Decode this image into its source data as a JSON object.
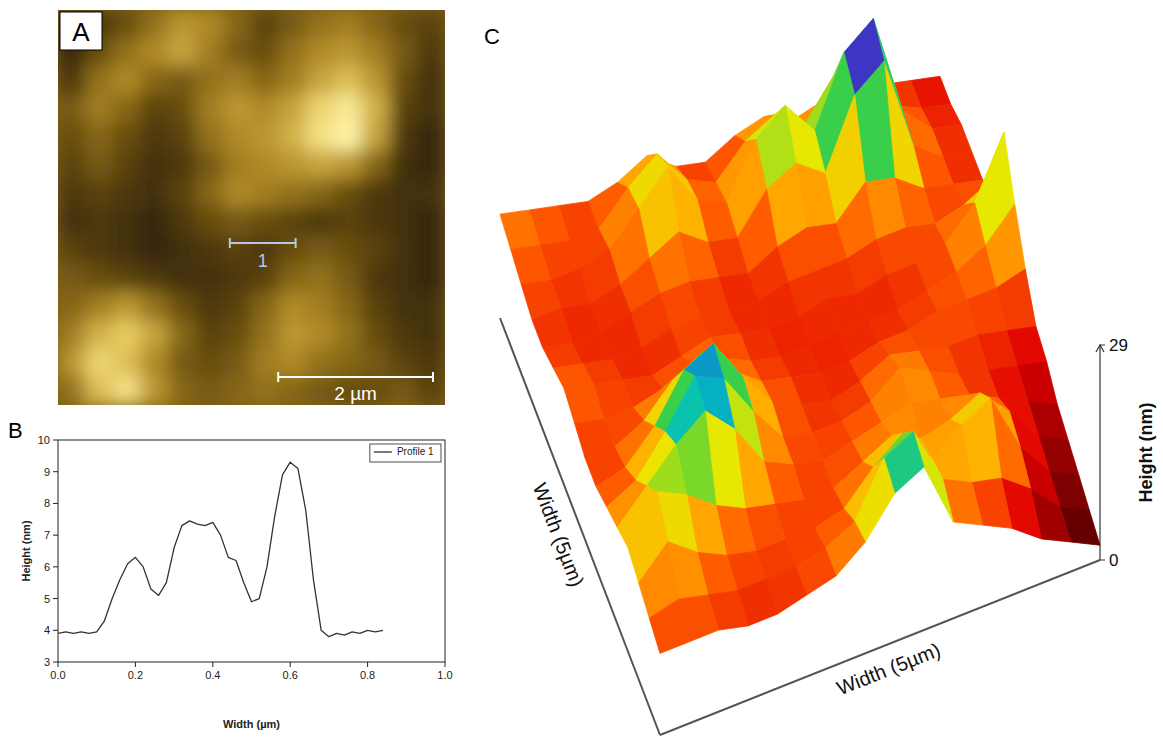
{
  "chart_data": [
    {
      "type": "heatmap",
      "panel": "A",
      "xlim": [
        0,
        5
      ],
      "ylim": [
        0,
        5
      ],
      "zlim": [
        0,
        20
      ],
      "scale_bar": {
        "length": 2,
        "label": "2 µm"
      },
      "profile": {
        "label": "1",
        "x": [
          2.22,
          3.07
        ],
        "y": 2.95
      },
      "z": [
        [
          3,
          4,
          6,
          9,
          12,
          11,
          8,
          5,
          7,
          9,
          10,
          8,
          6,
          5
        ],
        [
          2,
          6,
          9,
          11,
          13,
          10,
          7,
          6,
          9,
          11,
          12,
          10,
          7,
          4
        ],
        [
          4,
          9,
          11,
          8,
          7,
          9,
          10,
          8,
          10,
          13,
          15,
          12,
          6,
          3
        ],
        [
          7,
          10,
          8,
          5,
          6,
          10,
          12,
          11,
          13,
          17,
          19,
          14,
          5,
          3
        ],
        [
          6,
          8,
          6,
          4,
          5,
          9,
          11,
          12,
          14,
          18,
          20,
          13,
          4,
          2
        ],
        [
          5,
          7,
          5,
          3,
          4,
          7,
          10,
          11,
          12,
          13,
          12,
          8,
          3,
          2
        ],
        [
          4,
          5,
          4,
          3,
          5,
          8,
          11,
          10,
          9,
          8,
          6,
          4,
          3,
          3
        ],
        [
          3,
          4,
          3,
          2,
          4,
          6,
          7,
          6,
          5,
          4,
          5,
          4,
          3,
          2
        ],
        [
          5,
          4,
          3,
          2,
          3,
          4,
          5,
          4,
          6,
          7,
          6,
          5,
          3,
          2
        ],
        [
          7,
          6,
          5,
          4,
          3,
          3,
          4,
          5,
          8,
          9,
          7,
          4,
          3,
          2
        ],
        [
          8,
          10,
          12,
          9,
          6,
          4,
          5,
          8,
          11,
          10,
          8,
          5,
          3,
          3
        ],
        [
          10,
          14,
          16,
          13,
          8,
          5,
          6,
          9,
          12,
          11,
          9,
          6,
          4,
          3
        ],
        [
          12,
          17,
          15,
          11,
          7,
          6,
          7,
          10,
          11,
          9,
          8,
          7,
          5,
          4
        ],
        [
          9,
          15,
          18,
          12,
          8,
          7,
          8,
          9,
          8,
          7,
          6,
          6,
          7,
          5
        ]
      ]
    },
    {
      "type": "line",
      "panel": "B",
      "xlabel": "Width (µm)",
      "ylabel": "Height (nm)",
      "legend": "top-right",
      "xlim": [
        0,
        1
      ],
      "ylim": [
        3,
        10
      ],
      "xticks": [
        {
          "value": 0,
          "label": "0.0"
        },
        {
          "value": 0.2,
          "label": "0.2"
        },
        {
          "value": 0.4,
          "label": "0.4"
        },
        {
          "value": 0.6,
          "label": "0.6"
        },
        {
          "value": 0.8,
          "label": "0.8"
        },
        {
          "value": 1,
          "label": "1.0"
        }
      ],
      "yticks": [
        3,
        4,
        5,
        6,
        7,
        8,
        9,
        10
      ],
      "x": [
        0,
        0.02,
        0.04,
        0.06,
        0.08,
        0.1,
        0.12,
        0.14,
        0.16,
        0.18,
        0.2,
        0.22,
        0.24,
        0.26,
        0.28,
        0.3,
        0.32,
        0.34,
        0.36,
        0.38,
        0.4,
        0.42,
        0.44,
        0.46,
        0.48,
        0.5,
        0.52,
        0.54,
        0.56,
        0.58,
        0.6,
        0.62,
        0.64,
        0.66,
        0.68,
        0.7,
        0.72,
        0.74,
        0.76,
        0.78,
        0.8,
        0.82,
        0.84
      ],
      "series": [
        {
          "name": "Profile 1",
          "color": "#333333",
          "values": [
            3.9,
            3.95,
            3.9,
            3.95,
            3.9,
            3.95,
            4.3,
            5.0,
            5.6,
            6.1,
            6.3,
            6.0,
            5.3,
            5.1,
            5.5,
            6.6,
            7.3,
            7.45,
            7.35,
            7.3,
            7.4,
            7.0,
            6.3,
            6.2,
            5.5,
            4.9,
            5.0,
            6.0,
            7.6,
            8.9,
            9.3,
            9.1,
            7.8,
            5.6,
            4.0,
            3.8,
            3.9,
            3.85,
            3.95,
            3.9,
            4.0,
            3.95,
            4.0
          ]
        }
      ]
    },
    {
      "type": "surface",
      "panel": "C",
      "xlabel": "Width (5µm)",
      "ylabel": "Width (5µm)",
      "zlabel": "Height (nm)",
      "xlim": [
        0,
        5
      ],
      "ylim": [
        0,
        5
      ],
      "zlim": [
        0,
        29
      ],
      "zticks": [
        0,
        29
      ],
      "z": [
        [
          14,
          13,
          12,
          11,
          12,
          14,
          11,
          10,
          12,
          13,
          11,
          12,
          13,
          11,
          10,
          9
        ],
        [
          13,
          12,
          11,
          11,
          15,
          18,
          13,
          11,
          15,
          17,
          14,
          19,
          16,
          12,
          10,
          9
        ],
        [
          12,
          11,
          11,
          12,
          16,
          20,
          14,
          12,
          19,
          22,
          17,
          26,
          29,
          15,
          11,
          10
        ],
        [
          11,
          11,
          10,
          11,
          13,
          15,
          12,
          11,
          16,
          18,
          15,
          24,
          27,
          14,
          11,
          10
        ],
        [
          11,
          10,
          10,
          11,
          12,
          12,
          11,
          10,
          12,
          13,
          12,
          16,
          15,
          12,
          11,
          10
        ],
        [
          12,
          11,
          10,
          10,
          11,
          11,
          10,
          10,
          11,
          11,
          11,
          12,
          12,
          11,
          12,
          14
        ],
        [
          13,
          12,
          11,
          10,
          11,
          12,
          11,
          10,
          10,
          11,
          10,
          11,
          11,
          12,
          16,
          24
        ],
        [
          12,
          11,
          11,
          12,
          14,
          13,
          11,
          10,
          10,
          10,
          10,
          10,
          11,
          12,
          14,
          18
        ],
        [
          11,
          11,
          13,
          17,
          19,
          15,
          12,
          11,
          10,
          10,
          11,
          11,
          12,
          12,
          12,
          13
        ],
        [
          11,
          12,
          16,
          22,
          24,
          18,
          13,
          11,
          10,
          11,
          13,
          12,
          11,
          11,
          10,
          9
        ],
        [
          12,
          14,
          19,
          25,
          23,
          17,
          12,
          11,
          11,
          12,
          15,
          13,
          11,
          10,
          9,
          8
        ],
        [
          13,
          17,
          21,
          24,
          20,
          14,
          12,
          11,
          12,
          13,
          14,
          13,
          12,
          10,
          8,
          6
        ],
        [
          14,
          20,
          18,
          15,
          13,
          12,
          11,
          11,
          13,
          15,
          13,
          14,
          16,
          12,
          7,
          5
        ],
        [
          13,
          17,
          14,
          12,
          11,
          11,
          11,
          12,
          16,
          19,
          14,
          17,
          19,
          11,
          6,
          4
        ],
        [
          12,
          13,
          12,
          11,
          11,
          11,
          12,
          14,
          21,
          23,
          15,
          13,
          12,
          9,
          5,
          3
        ],
        [
          11,
          11,
          11,
          10,
          10,
          11,
          12,
          15,
          20,
          22,
          13,
          11,
          9,
          6,
          4,
          2
        ]
      ]
    }
  ]
}
